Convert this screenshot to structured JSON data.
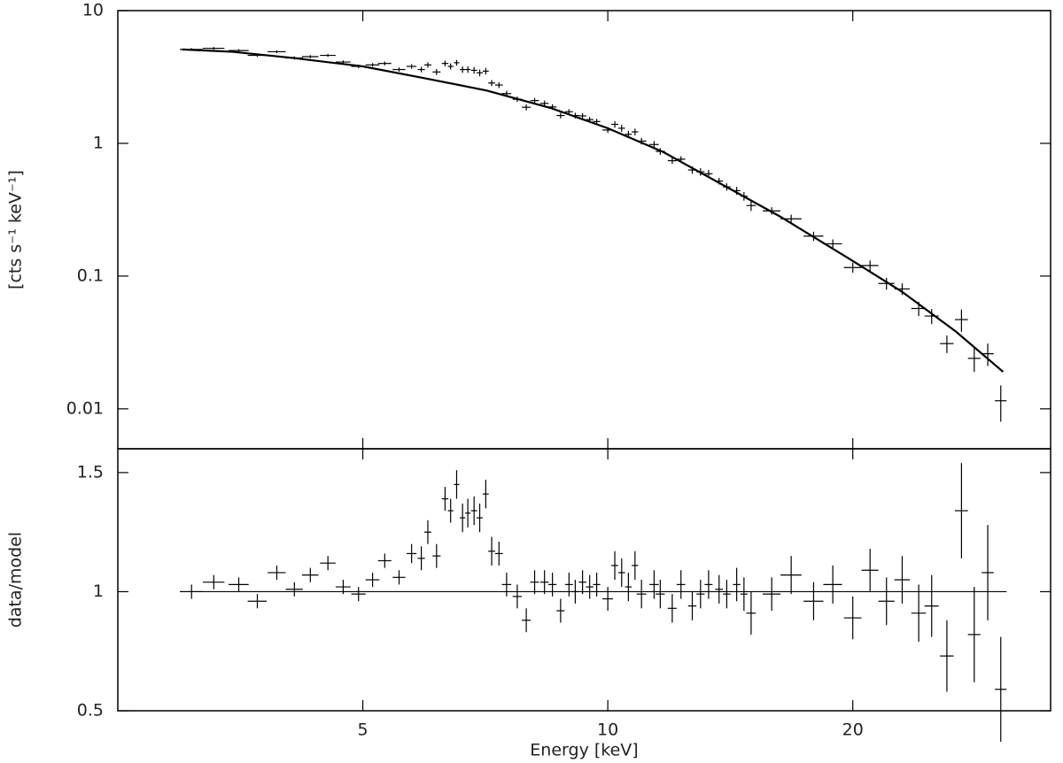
{
  "chart_data": [
    {
      "type": "spectrum",
      "ylabel": "[cts s⁻¹ keV⁻¹]",
      "log_x": true,
      "log_y": true,
      "xlim": [
        2.5,
        35
      ],
      "ylim": [
        0.005,
        10
      ],
      "yticks": [
        10,
        1,
        0.1,
        0.01
      ],
      "xticks": [
        5,
        10,
        20
      ],
      "show_xtick_labels": false,
      "color": "#000000",
      "model_x": [
        3.0,
        3.45,
        4.1,
        5,
        5.95,
        7.1,
        8.5,
        10,
        11.7,
        13.9,
        16.3,
        20,
        23,
        26.8,
        30.6
      ],
      "model_values": [
        5.1,
        4.9,
        4.4,
        3.8,
        3.1,
        2.5,
        1.85,
        1.3,
        0.86,
        0.48,
        0.28,
        0.13,
        0.076,
        0.038,
        0.019
      ],
      "x": [
        3.08,
        3.28,
        3.52,
        3.71,
        3.92,
        4.12,
        4.31,
        4.53,
        4.73,
        4.94,
        5.14,
        5.32,
        5.54,
        5.74,
        5.9,
        6.01,
        6.16,
        6.31,
        6.41,
        6.52,
        6.63,
        6.73,
        6.85,
        6.96,
        7.08,
        7.2,
        7.35,
        7.51,
        7.74,
        7.94,
        8.13,
        8.36,
        8.55,
        8.75,
        8.96,
        9.12,
        9.31,
        9.5,
        9.69,
        10.0,
        10.2,
        10.4,
        10.6,
        10.8,
        11.0,
        11.4,
        11.6,
        12.0,
        12.3,
        12.7,
        13.0,
        13.3,
        13.7,
        14.0,
        14.4,
        14.7,
        15.0,
        15.9,
        16.8,
        17.9,
        18.9,
        20.0,
        21.0,
        22.0,
        23.0,
        24.1,
        25.0,
        26.1,
        27.2,
        28.2,
        29.3,
        30.4
      ],
      "xerr": [
        0.1,
        0.1,
        0.1,
        0.1,
        0.1,
        0.1,
        0.1,
        0.1,
        0.1,
        0.1,
        0.1,
        0.1,
        0.1,
        0.08,
        0.06,
        0.06,
        0.07,
        0.06,
        0.05,
        0.05,
        0.05,
        0.05,
        0.06,
        0.06,
        0.06,
        0.07,
        0.08,
        0.1,
        0.1,
        0.1,
        0.1,
        0.1,
        0.1,
        0.1,
        0.1,
        0.1,
        0.1,
        0.1,
        0.1,
        0.15,
        0.1,
        0.1,
        0.1,
        0.1,
        0.15,
        0.15,
        0.15,
        0.15,
        0.15,
        0.15,
        0.15,
        0.15,
        0.15,
        0.15,
        0.15,
        0.15,
        0.2,
        0.4,
        0.5,
        0.5,
        0.5,
        0.5,
        0.5,
        0.5,
        0.5,
        0.5,
        0.5,
        0.5,
        0.5,
        0.5,
        0.5,
        0.5
      ],
      "values": [
        5.1,
        5.2,
        5.0,
        4.6,
        4.9,
        4.4,
        4.5,
        4.6,
        4.1,
        3.8,
        3.9,
        4.0,
        3.6,
        3.8,
        3.6,
        3.9,
        3.45,
        4.0,
        3.8,
        4.05,
        3.6,
        3.6,
        3.55,
        3.4,
        3.5,
        2.85,
        2.75,
        2.37,
        2.15,
        1.87,
        2.1,
        2.0,
        1.88,
        1.62,
        1.73,
        1.62,
        1.61,
        1.51,
        1.46,
        1.26,
        1.39,
        1.3,
        1.17,
        1.22,
        1.04,
        0.98,
        0.87,
        0.74,
        0.76,
        0.63,
        0.61,
        0.59,
        0.52,
        0.47,
        0.44,
        0.4,
        0.34,
        0.31,
        0.27,
        0.2,
        0.175,
        0.116,
        0.12,
        0.088,
        0.08,
        0.057,
        0.05,
        0.031,
        0.047,
        0.024,
        0.026,
        0.0115
      ],
      "yerr": [
        0.12,
        0.12,
        0.12,
        0.12,
        0.12,
        0.12,
        0.12,
        0.12,
        0.12,
        0.12,
        0.12,
        0.13,
        0.13,
        0.15,
        0.17,
        0.18,
        0.18,
        0.2,
        0.2,
        0.2,
        0.2,
        0.2,
        0.2,
        0.2,
        0.2,
        0.15,
        0.14,
        0.12,
        0.1,
        0.1,
        0.1,
        0.1,
        0.09,
        0.08,
        0.08,
        0.08,
        0.08,
        0.07,
        0.07,
        0.06,
        0.08,
        0.08,
        0.07,
        0.07,
        0.06,
        0.06,
        0.05,
        0.04,
        0.04,
        0.04,
        0.04,
        0.04,
        0.03,
        0.03,
        0.03,
        0.03,
        0.03,
        0.02,
        0.02,
        0.016,
        0.014,
        0.01,
        0.011,
        0.009,
        0.008,
        0.007,
        0.0065,
        0.0047,
        0.009,
        0.005,
        0.005,
        0.0035
      ]
    },
    {
      "type": "ratio",
      "xlabel": "Energy [keV]",
      "ylabel": "data/model",
      "log_x": true,
      "log_y": false,
      "xlim": [
        2.5,
        35
      ],
      "ylim": [
        0.5,
        1.6
      ],
      "yticks": [
        0.5,
        1,
        1.5
      ],
      "xticks": [
        5,
        10,
        20
      ],
      "show_xtick_labels": true,
      "reference": 1,
      "color": "#000000",
      "x": [
        3.08,
        3.28,
        3.52,
        3.71,
        3.92,
        4.12,
        4.31,
        4.53,
        4.73,
        4.94,
        5.14,
        5.32,
        5.54,
        5.74,
        5.9,
        6.01,
        6.16,
        6.31,
        6.41,
        6.52,
        6.63,
        6.73,
        6.85,
        6.96,
        7.08,
        7.2,
        7.35,
        7.51,
        7.74,
        7.94,
        8.13,
        8.36,
        8.55,
        8.75,
        8.96,
        9.12,
        9.31,
        9.5,
        9.69,
        10.0,
        10.2,
        10.4,
        10.6,
        10.8,
        11.0,
        11.4,
        11.6,
        12.0,
        12.3,
        12.7,
        13.0,
        13.3,
        13.7,
        14.0,
        14.4,
        14.7,
        15.0,
        15.9,
        16.8,
        17.9,
        18.9,
        20.0,
        21.0,
        22.0,
        23.0,
        24.1,
        25.0,
        26.1,
        27.2,
        28.2,
        29.3,
        30.4
      ],
      "xerr": [
        0.1,
        0.1,
        0.1,
        0.1,
        0.1,
        0.1,
        0.1,
        0.1,
        0.1,
        0.1,
        0.1,
        0.1,
        0.1,
        0.08,
        0.06,
        0.06,
        0.07,
        0.06,
        0.05,
        0.05,
        0.05,
        0.05,
        0.06,
        0.06,
        0.06,
        0.07,
        0.08,
        0.1,
        0.1,
        0.1,
        0.1,
        0.1,
        0.1,
        0.1,
        0.1,
        0.1,
        0.1,
        0.1,
        0.1,
        0.15,
        0.1,
        0.1,
        0.1,
        0.1,
        0.15,
        0.15,
        0.15,
        0.15,
        0.15,
        0.15,
        0.15,
        0.15,
        0.15,
        0.15,
        0.15,
        0.15,
        0.2,
        0.4,
        0.5,
        0.5,
        0.5,
        0.5,
        0.5,
        0.5,
        0.5,
        0.5,
        0.5,
        0.5,
        0.5,
        0.5,
        0.5,
        0.5
      ],
      "values": [
        1.0,
        1.04,
        1.03,
        0.96,
        1.08,
        1.01,
        1.07,
        1.12,
        1.02,
        0.99,
        1.05,
        1.13,
        1.06,
        1.16,
        1.14,
        1.25,
        1.15,
        1.39,
        1.34,
        1.45,
        1.31,
        1.33,
        1.34,
        1.31,
        1.41,
        1.17,
        1.16,
        1.03,
        0.98,
        0.88,
        1.04,
        1.04,
        1.03,
        0.92,
        1.03,
        1.0,
        1.04,
        1.02,
        1.03,
        0.97,
        1.11,
        1.08,
        1.02,
        1.11,
        0.99,
        1.03,
        0.99,
        0.93,
        1.03,
        0.94,
        0.99,
        1.03,
        1.01,
        0.99,
        1.03,
        0.99,
        0.91,
        0.99,
        1.07,
        0.96,
        1.03,
        0.89,
        1.09,
        0.96,
        1.05,
        0.91,
        0.94,
        0.73,
        1.34,
        0.82,
        1.08,
        0.59
      ],
      "yerr": [
        0.03,
        0.03,
        0.03,
        0.03,
        0.03,
        0.03,
        0.03,
        0.03,
        0.03,
        0.03,
        0.03,
        0.03,
        0.03,
        0.04,
        0.05,
        0.05,
        0.05,
        0.05,
        0.05,
        0.06,
        0.06,
        0.06,
        0.06,
        0.06,
        0.06,
        0.06,
        0.05,
        0.05,
        0.05,
        0.05,
        0.05,
        0.05,
        0.05,
        0.05,
        0.05,
        0.05,
        0.05,
        0.05,
        0.05,
        0.05,
        0.06,
        0.06,
        0.06,
        0.06,
        0.06,
        0.06,
        0.06,
        0.06,
        0.06,
        0.06,
        0.06,
        0.06,
        0.06,
        0.06,
        0.07,
        0.07,
        0.09,
        0.07,
        0.08,
        0.08,
        0.08,
        0.09,
        0.09,
        0.1,
        0.1,
        0.12,
        0.13,
        0.15,
        0.2,
        0.2,
        0.2,
        0.22
      ]
    }
  ]
}
